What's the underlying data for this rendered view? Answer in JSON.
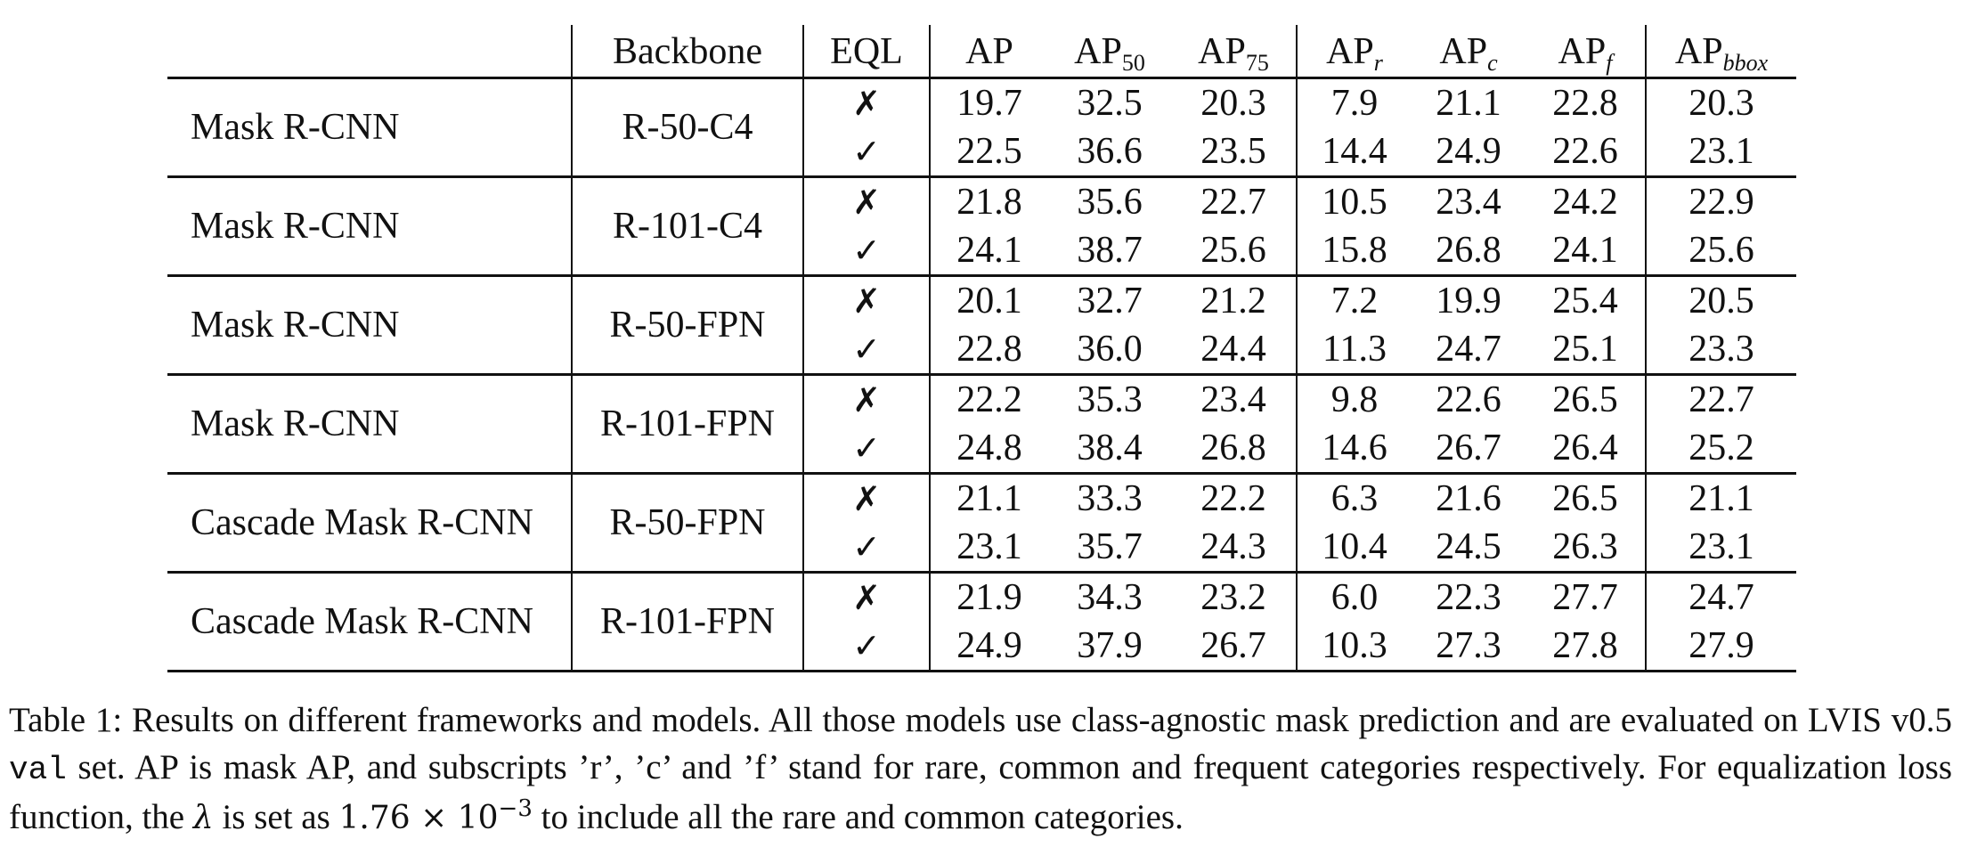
{
  "table": {
    "headers": {
      "model": "",
      "backbone": "Backbone",
      "eql": "EQL",
      "ap": {
        "base": "AP",
        "sub": ""
      },
      "ap50": {
        "base": "AP",
        "sub": "50"
      },
      "ap75": {
        "base": "AP",
        "sub": "75"
      },
      "apr": {
        "base": "AP",
        "sub": "r"
      },
      "apc": {
        "base": "AP",
        "sub": "c"
      },
      "apf": {
        "base": "AP",
        "sub": "f"
      },
      "apbbox": {
        "base": "AP",
        "sub": "bbox"
      }
    },
    "marks": {
      "no": "✗",
      "yes": "✓"
    },
    "groups": [
      {
        "model": "Mask R-CNN",
        "backbone": "R-50-C4",
        "rows": [
          {
            "eql": "✗",
            "ap": "19.7",
            "ap50": "32.5",
            "ap75": "20.3",
            "apr": "7.9",
            "apc": "21.1",
            "apf": "22.8",
            "apbbox": "20.3"
          },
          {
            "eql": "✓",
            "ap": "22.5",
            "ap50": "36.6",
            "ap75": "23.5",
            "apr": "14.4",
            "apc": "24.9",
            "apf": "22.6",
            "apbbox": "23.1"
          }
        ]
      },
      {
        "model": "Mask R-CNN",
        "backbone": "R-101-C4",
        "rows": [
          {
            "eql": "✗",
            "ap": "21.8",
            "ap50": "35.6",
            "ap75": "22.7",
            "apr": "10.5",
            "apc": "23.4",
            "apf": "24.2",
            "apbbox": "22.9"
          },
          {
            "eql": "✓",
            "ap": "24.1",
            "ap50": "38.7",
            "ap75": "25.6",
            "apr": "15.8",
            "apc": "26.8",
            "apf": "24.1",
            "apbbox": "25.6"
          }
        ]
      },
      {
        "model": "Mask R-CNN",
        "backbone": "R-50-FPN",
        "rows": [
          {
            "eql": "✗",
            "ap": "20.1",
            "ap50": "32.7",
            "ap75": "21.2",
            "apr": "7.2",
            "apc": "19.9",
            "apf": "25.4",
            "apbbox": "20.5"
          },
          {
            "eql": "✓",
            "ap": "22.8",
            "ap50": "36.0",
            "ap75": "24.4",
            "apr": "11.3",
            "apc": "24.7",
            "apf": "25.1",
            "apbbox": "23.3"
          }
        ]
      },
      {
        "model": "Mask R-CNN",
        "backbone": "R-101-FPN",
        "rows": [
          {
            "eql": "✗",
            "ap": "22.2",
            "ap50": "35.3",
            "ap75": "23.4",
            "apr": "9.8",
            "apc": "22.6",
            "apf": "26.5",
            "apbbox": "22.7"
          },
          {
            "eql": "✓",
            "ap": "24.8",
            "ap50": "38.4",
            "ap75": "26.8",
            "apr": "14.6",
            "apc": "26.7",
            "apf": "26.4",
            "apbbox": "25.2"
          }
        ]
      },
      {
        "model": "Cascade Mask R-CNN",
        "backbone": "R-50-FPN",
        "rows": [
          {
            "eql": "✗",
            "ap": "21.1",
            "ap50": "33.3",
            "ap75": "22.2",
            "apr": "6.3",
            "apc": "21.6",
            "apf": "26.5",
            "apbbox": "21.1"
          },
          {
            "eql": "✓",
            "ap": "23.1",
            "ap50": "35.7",
            "ap75": "24.3",
            "apr": "10.4",
            "apc": "24.5",
            "apf": "26.3",
            "apbbox": "23.1"
          }
        ]
      },
      {
        "model": "Cascade Mask R-CNN",
        "backbone": "R-101-FPN",
        "rows": [
          {
            "eql": "✗",
            "ap": "21.9",
            "ap50": "34.3",
            "ap75": "23.2",
            "apr": "6.0",
            "apc": "22.3",
            "apf": "27.7",
            "apbbox": "24.7"
          },
          {
            "eql": "✓",
            "ap": "24.9",
            "ap50": "37.9",
            "ap75": "26.7",
            "apr": "10.3",
            "apc": "27.3",
            "apf": "27.8",
            "apbbox": "27.9"
          }
        ]
      }
    ]
  },
  "caption": {
    "part1": "Table 1: Results on different frameworks and models. All those models use class-agnostic mask prediction and are evaluated on LVIS v0.5",
    "code": "val",
    "part2": "set.  AP is mask AP, and subscripts ’r’, ’c’ and ’f’ stand for rare, common and frequent categories respectively. For equalization loss function, the",
    "lambda": "λ",
    "part3": "is set as",
    "value": "1.76 × 10",
    "exponent": "−3",
    "part4": "to include all the rare and common categories."
  }
}
